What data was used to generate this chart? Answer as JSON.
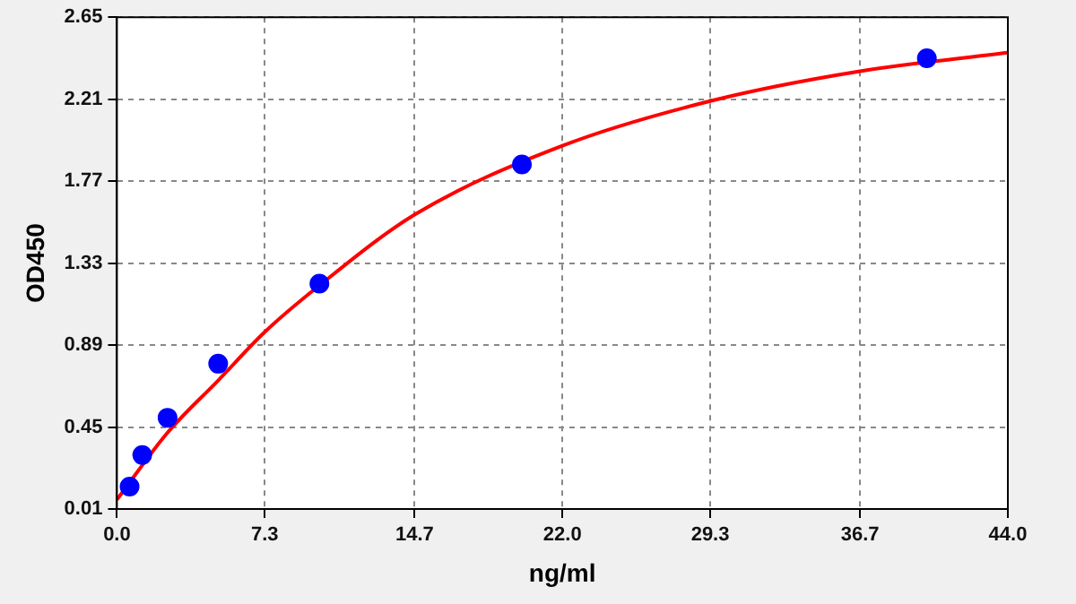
{
  "chart_data": {
    "type": "scatter",
    "xlabel": "ng/ml",
    "ylabel": "OD450",
    "xlim": [
      0,
      44
    ],
    "xticks": [
      {
        "value": 0,
        "label": "0.0"
      },
      7.3,
      14.7,
      {
        "value": 22,
        "label": "22.0"
      },
      29.3,
      36.7,
      {
        "value": 44,
        "label": "44.0"
      }
    ],
    "ylim": [
      0.01,
      2.65
    ],
    "yticks": [
      0.01,
      0.45,
      0.89,
      1.33,
      1.77,
      2.21,
      2.65
    ],
    "grid": true,
    "legend": false,
    "series": [
      {
        "type": "scatter",
        "color": "#0000ff",
        "marker": "circle",
        "x": [
          0.625,
          1.25,
          2.5,
          5,
          10,
          20,
          40
        ],
        "values": [
          0.13,
          0.3,
          0.5,
          0.79,
          1.22,
          1.86,
          2.43
        ]
      },
      {
        "type": "line",
        "color": "#ff0000",
        "marker": "none",
        "x": [
          0,
          2.5,
          5,
          7.3,
          10,
          14.7,
          22,
          29.3,
          36.7,
          44
        ],
        "values": [
          0.06,
          0.42,
          0.7,
          0.96,
          1.21,
          1.59,
          1.96,
          2.2,
          2.36,
          2.46
        ]
      }
    ]
  }
}
